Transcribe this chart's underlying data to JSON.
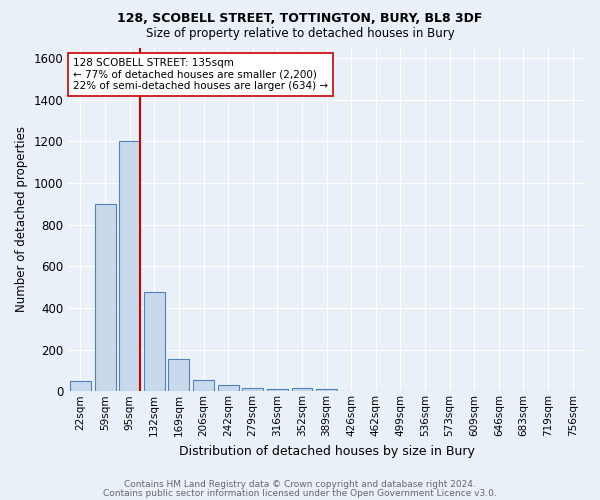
{
  "title1": "128, SCOBELL STREET, TOTTINGTON, BURY, BL8 3DF",
  "title2": "Size of property relative to detached houses in Bury",
  "xlabel": "Distribution of detached houses by size in Bury",
  "ylabel": "Number of detached properties",
  "bar_labels": [
    "22sqm",
    "59sqm",
    "95sqm",
    "132sqm",
    "169sqm",
    "206sqm",
    "242sqm",
    "279sqm",
    "316sqm",
    "352sqm",
    "389sqm",
    "426sqm",
    "462sqm",
    "499sqm",
    "536sqm",
    "573sqm",
    "609sqm",
    "646sqm",
    "683sqm",
    "719sqm",
    "756sqm"
  ],
  "bar_values": [
    50,
    900,
    1200,
    475,
    155,
    55,
    30,
    15,
    10,
    15,
    10,
    0,
    0,
    0,
    0,
    0,
    0,
    0,
    0,
    0,
    0
  ],
  "bar_color": "#c9d9ec",
  "bar_edge_color": "#4f81bd",
  "bg_color": "#eaf0f8",
  "grid_color": "#ffffff",
  "vline_color": "#cc0000",
  "annotation_text": "128 SCOBELL STREET: 135sqm\n← 77% of detached houses are smaller (2,200)\n22% of semi-detached houses are larger (634) →",
  "annotation_box_color": "#ffffff",
  "annotation_box_edge": "#cc0000",
  "ylim": [
    0,
    1650
  ],
  "footnote1": "Contains HM Land Registry data © Crown copyright and database right 2024.",
  "footnote2": "Contains public sector information licensed under the Open Government Licence v3.0."
}
